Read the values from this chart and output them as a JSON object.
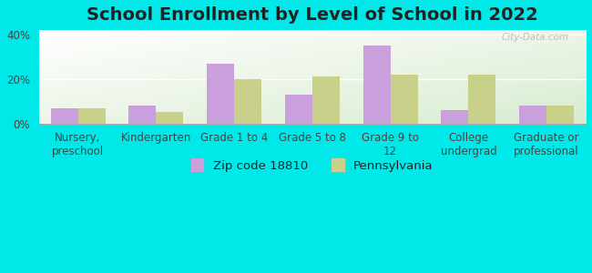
{
  "title": "School Enrollment by Level of School in 2022",
  "categories": [
    "Nursery,\npreschool",
    "Kindergarten",
    "Grade 1 to 4",
    "Grade 5 to 8",
    "Grade 9 to\n12",
    "College\nundergrad",
    "Graduate or\nprofessional"
  ],
  "zip_values": [
    7,
    8,
    27,
    13,
    35,
    6,
    8
  ],
  "pa_values": [
    7,
    5,
    20,
    21,
    22,
    22,
    8
  ],
  "zip_color": "#c9a0dc",
  "pa_color": "#c8d08a",
  "background_color": "#00e8e8",
  "ylabel_ticks": [
    0,
    20,
    40
  ],
  "ytick_labels": [
    "0%",
    "20%",
    "40%"
  ],
  "ylim": [
    0,
    42
  ],
  "zip_label": "Zip code 18810",
  "pa_label": "Pennsylvania",
  "title_fontsize": 14,
  "tick_fontsize": 8.5,
  "legend_fontsize": 9.5,
  "bar_width": 0.35,
  "watermark": "City-Data.com"
}
